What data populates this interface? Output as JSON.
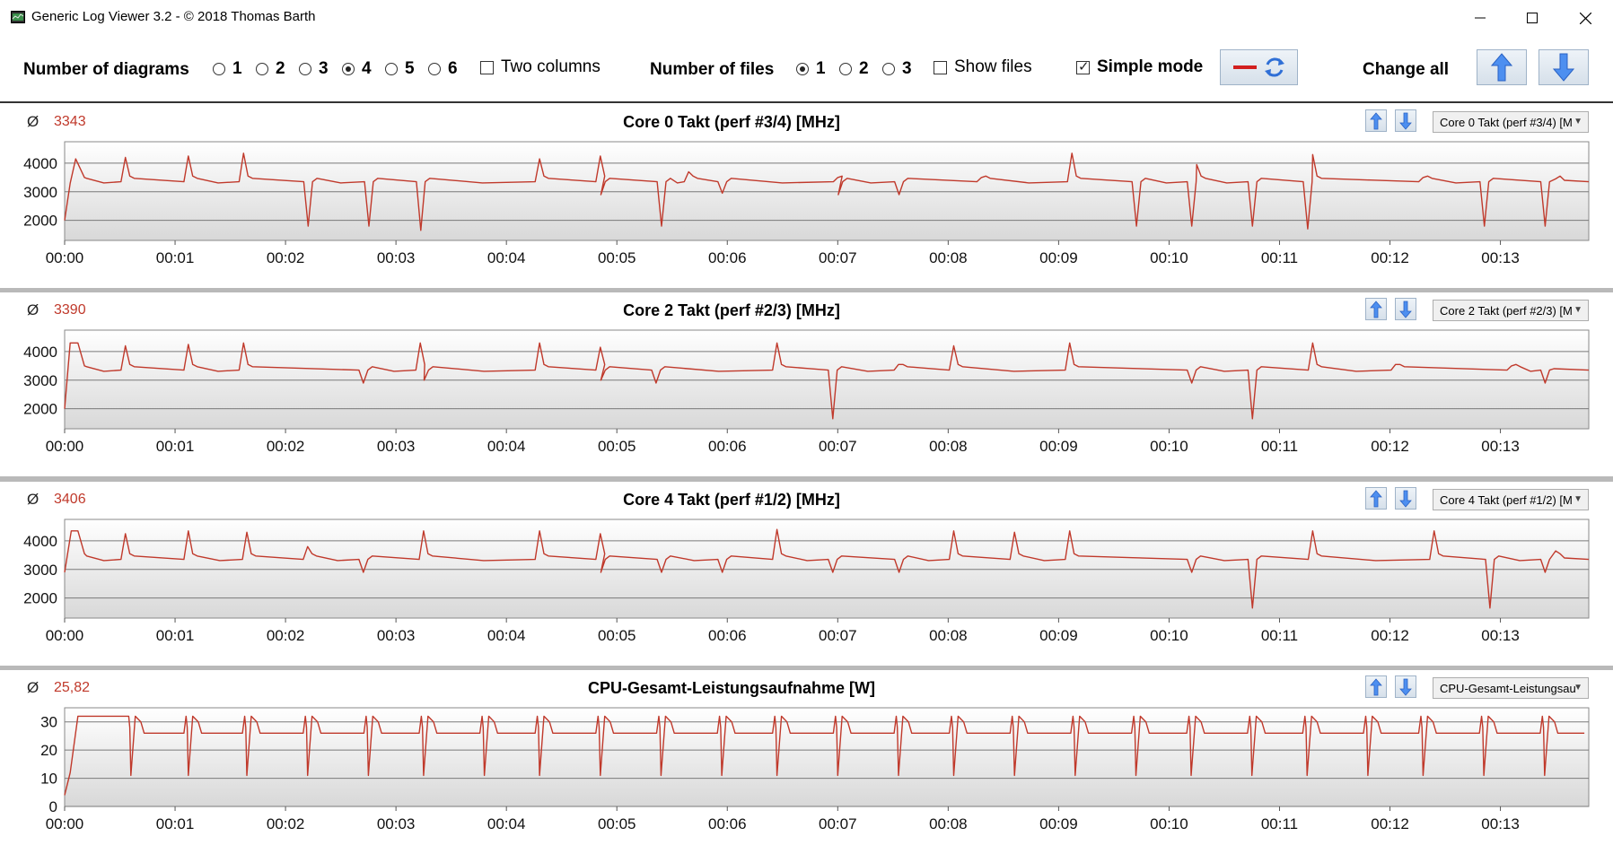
{
  "window": {
    "title": "Generic Log Viewer 3.2 - © 2018 Thomas Barth"
  },
  "toolbar": {
    "diagrams_label": "Number of diagrams",
    "diagram_options": [
      "1",
      "2",
      "3",
      "4",
      "5",
      "6"
    ],
    "diagram_selected": "4",
    "two_columns_label": "Two columns",
    "two_columns_checked": false,
    "files_label": "Number of files",
    "file_options": [
      "1",
      "2",
      "3"
    ],
    "file_selected": "1",
    "show_files_label": "Show files",
    "show_files_checked": false,
    "simple_mode_label": "Simple mode",
    "simple_mode_checked": true,
    "change_all_label": "Change all"
  },
  "colors": {
    "line": "#c0392b",
    "accent_arrow": "#3d7be0",
    "plot_border": "#8a8a8a"
  },
  "panels": [
    {
      "avg_symbol": "Ø",
      "avg": "3343",
      "title": "Core 0 Takt (perf #3/4) [MHz]",
      "selector": "Core 0 Takt (perf #3/4) [M"
    },
    {
      "avg_symbol": "Ø",
      "avg": "3390",
      "title": "Core 2 Takt (perf #2/3) [MHz]",
      "selector": "Core 2 Takt (perf #2/3) [M"
    },
    {
      "avg_symbol": "Ø",
      "avg": "3406",
      "title": "Core 4 Takt (perf #1/2) [MHz]",
      "selector": "Core 4 Takt (perf #1/2) [M"
    },
    {
      "avg_symbol": "Ø",
      "avg": "25,82",
      "title": "CPU-Gesamt-Leistungsaufnahme [W]",
      "selector": "CPU-Gesamt-Leistungsau"
    }
  ],
  "chart_data": [
    {
      "type": "line",
      "title": "Core 0 Takt (perf #3/4) [MHz]",
      "x_ticks": [
        "00:00",
        "00:01",
        "00:02",
        "00:03",
        "00:04",
        "00:05",
        "00:06",
        "00:07",
        "00:08",
        "00:09",
        "00:10",
        "00:11",
        "00:12",
        "00:13"
      ],
      "y_ticks": [
        "2000",
        "3000",
        "4000"
      ],
      "ylim": [
        1300,
        4750
      ],
      "xlim": [
        0,
        13.8
      ],
      "x_unit": "minutes",
      "baseline": 3350,
      "start": [
        [
          0,
          2000
        ],
        [
          0.05,
          3300
        ],
        [
          0.1,
          4150
        ],
        [
          0.18,
          3500
        ]
      ],
      "peaks": [
        [
          0.55,
          4200
        ],
        [
          1.12,
          4250
        ],
        [
          1.62,
          4350
        ],
        [
          4.3,
          4150
        ],
        [
          4.85,
          4250
        ],
        [
          5.65,
          3700
        ],
        [
          7.0,
          3500
        ],
        [
          8.3,
          3500
        ],
        [
          9.12,
          4350
        ],
        [
          10.25,
          3950
        ],
        [
          11.3,
          4300
        ],
        [
          12.3,
          3500
        ],
        [
          13.5,
          3450
        ]
      ],
      "dips": [
        [
          2.2,
          1800
        ],
        [
          2.75,
          1800
        ],
        [
          3.22,
          1650
        ],
        [
          4.85,
          2900
        ],
        [
          5.4,
          1800
        ],
        [
          5.95,
          2950
        ],
        [
          7.0,
          2900
        ],
        [
          7.55,
          2900
        ],
        [
          9.7,
          1800
        ],
        [
          10.2,
          1800
        ],
        [
          10.75,
          1800
        ],
        [
          11.25,
          1700
        ],
        [
          12.85,
          1800
        ],
        [
          13.4,
          1800
        ]
      ]
    },
    {
      "type": "line",
      "title": "Core 2 Takt (perf #2/3) [MHz]",
      "x_ticks": [
        "00:00",
        "00:01",
        "00:02",
        "00:03",
        "00:04",
        "00:05",
        "00:06",
        "00:07",
        "00:08",
        "00:09",
        "00:10",
        "00:11",
        "00:12",
        "00:13"
      ],
      "y_ticks": [
        "2000",
        "3000",
        "4000"
      ],
      "ylim": [
        1300,
        4750
      ],
      "xlim": [
        0,
        13.8
      ],
      "x_unit": "minutes",
      "baseline": 3350,
      "start": [
        [
          0,
          2000
        ],
        [
          0.05,
          4300
        ],
        [
          0.12,
          4300
        ],
        [
          0.18,
          3500
        ]
      ],
      "peaks": [
        [
          0.55,
          4200
        ],
        [
          1.12,
          4250
        ],
        [
          1.62,
          4300
        ],
        [
          3.22,
          4300
        ],
        [
          4.3,
          4300
        ],
        [
          4.85,
          4150
        ],
        [
          6.45,
          4300
        ],
        [
          7.55,
          3550
        ],
        [
          8.05,
          4200
        ],
        [
          9.1,
          4300
        ],
        [
          11.3,
          4300
        ],
        [
          12.05,
          3550
        ],
        [
          13.1,
          3500
        ]
      ],
      "dips": [
        [
          2.7,
          2900
        ],
        [
          3.25,
          3000
        ],
        [
          4.85,
          3000
        ],
        [
          5.35,
          2900
        ],
        [
          6.95,
          1650
        ],
        [
          10.2,
          2900
        ],
        [
          10.75,
          1650
        ],
        [
          13.4,
          2900
        ]
      ]
    },
    {
      "type": "line",
      "title": "Core 4 Takt (perf #1/2) [MHz]",
      "x_ticks": [
        "00:00",
        "00:01",
        "00:02",
        "00:03",
        "00:04",
        "00:05",
        "00:06",
        "00:07",
        "00:08",
        "00:09",
        "00:10",
        "00:11",
        "00:12",
        "00:13"
      ],
      "y_ticks": [
        "2000",
        "3000",
        "4000"
      ],
      "ylim": [
        1300,
        4750
      ],
      "xlim": [
        0,
        13.8
      ],
      "x_unit": "minutes",
      "baseline": 3350,
      "start": [
        [
          0,
          2900
        ],
        [
          0.06,
          4350
        ],
        [
          0.12,
          4350
        ],
        [
          0.18,
          3550
        ]
      ],
      "peaks": [
        [
          0.55,
          4250
        ],
        [
          1.12,
          4350
        ],
        [
          1.65,
          4300
        ],
        [
          2.2,
          3800
        ],
        [
          3.25,
          4350
        ],
        [
          4.3,
          4350
        ],
        [
          4.85,
          4250
        ],
        [
          6.45,
          4400
        ],
        [
          8.05,
          4350
        ],
        [
          8.6,
          4300
        ],
        [
          9.1,
          4350
        ],
        [
          11.3,
          4350
        ],
        [
          12.4,
          4350
        ],
        [
          13.5,
          3650
        ]
      ],
      "dips": [
        [
          2.7,
          2900
        ],
        [
          4.85,
          2900
        ],
        [
          5.4,
          2900
        ],
        [
          5.95,
          2900
        ],
        [
          6.95,
          2900
        ],
        [
          7.55,
          2900
        ],
        [
          10.2,
          2900
        ],
        [
          10.75,
          1650
        ],
        [
          12.9,
          1650
        ],
        [
          13.4,
          2900
        ]
      ]
    },
    {
      "type": "line",
      "title": "CPU-Gesamt-Leistungsaufnahme [W]",
      "x_ticks": [
        "00:00",
        "00:01",
        "00:02",
        "00:03",
        "00:04",
        "00:05",
        "00:06",
        "00:07",
        "00:08",
        "00:09",
        "00:10",
        "00:11",
        "00:12",
        "00:13"
      ],
      "y_ticks": [
        "0",
        "10",
        "20",
        "30"
      ],
      "ylim": [
        0,
        35
      ],
      "xlim": [
        0,
        13.8
      ],
      "x_unit": "minutes",
      "period": 0.53,
      "high": 32,
      "plateau": 26,
      "low": 11,
      "first_plateau": [
        [
          0,
          4
        ],
        [
          0.05,
          12
        ],
        [
          0.12,
          32
        ],
        [
          0.55,
          32
        ]
      ],
      "dip_times": [
        0.6,
        1.12,
        1.65,
        2.2,
        2.75,
        3.25,
        3.8,
        4.3,
        4.85,
        5.4,
        5.95,
        6.45,
        7.0,
        7.55,
        8.05,
        8.6,
        9.15,
        9.7,
        10.2,
        10.75,
        11.25,
        11.8,
        12.3,
        12.85,
        13.4
      ]
    }
  ]
}
